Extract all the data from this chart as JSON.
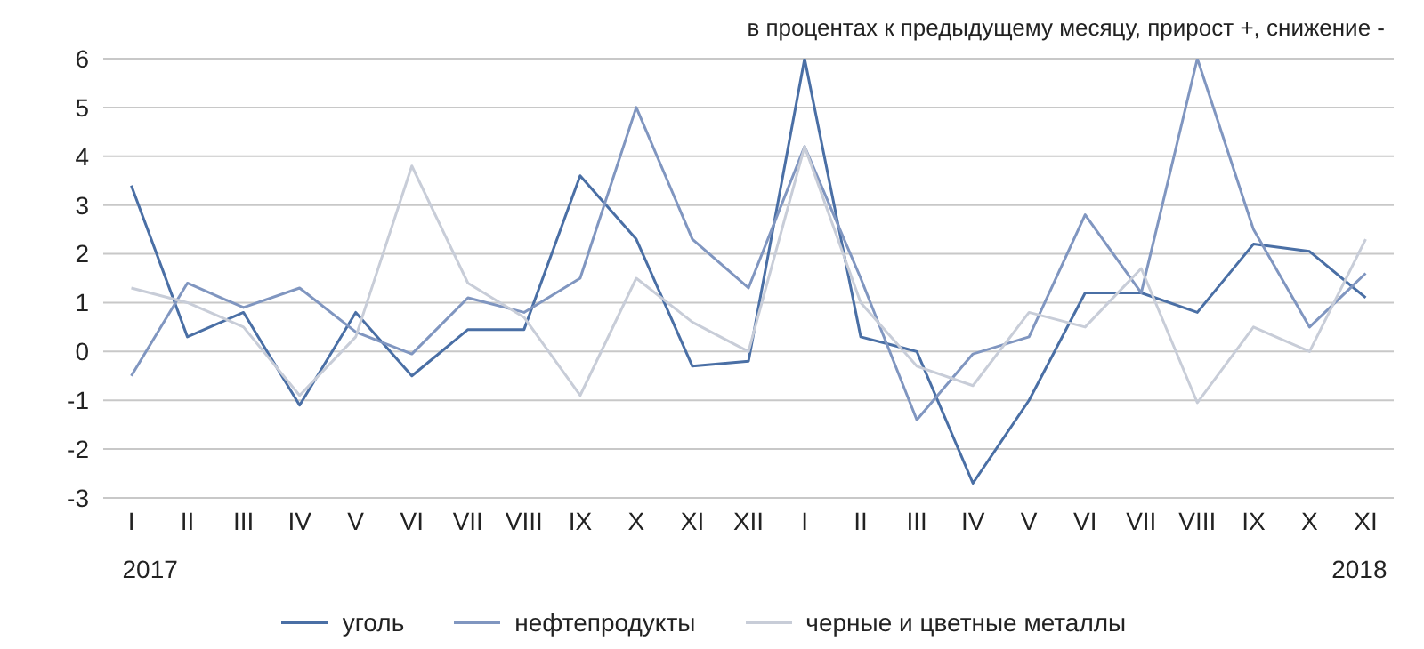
{
  "chart_data": {
    "type": "line",
    "subtitle": "в процентах к предыдущему месяцу, прирост +, снижение -",
    "categories": [
      "I",
      "II",
      "III",
      "IV",
      "V",
      "VI",
      "VII",
      "VIII",
      "IX",
      "X",
      "XI",
      "XII",
      "I",
      "II",
      "III",
      "IV",
      "V",
      "VI",
      "VII",
      "VIII",
      "IX",
      "X",
      "XI"
    ],
    "series": [
      {
        "name": "уголь",
        "color": "#4a6fa5",
        "values": [
          3.4,
          0.3,
          0.8,
          -1.1,
          0.8,
          -0.5,
          0.45,
          0.45,
          3.6,
          2.3,
          -0.3,
          -0.2,
          6.0,
          0.3,
          0.0,
          -2.7,
          -1.0,
          1.2,
          1.2,
          0.8,
          2.2,
          2.05,
          1.1
        ]
      },
      {
        "name": "нефтепродукты",
        "color": "#8096c0",
        "values": [
          -0.5,
          1.4,
          0.9,
          1.3,
          0.4,
          -0.05,
          1.1,
          0.8,
          1.5,
          5.0,
          2.3,
          1.3,
          4.2,
          1.5,
          -1.4,
          -0.05,
          0.3,
          2.8,
          1.2,
          6.0,
          2.5,
          0.5,
          1.6
        ]
      },
      {
        "name": "черные и цветные металлы",
        "color": "#c8cdd8",
        "values": [
          1.3,
          1.0,
          0.5,
          -0.9,
          0.3,
          3.8,
          1.4,
          0.7,
          -0.9,
          1.5,
          0.6,
          0.0,
          4.2,
          1.0,
          -0.3,
          -0.7,
          0.8,
          0.5,
          1.7,
          -1.05,
          0.5,
          0.0,
          2.3
        ]
      }
    ],
    "annotations": [
      "2017",
      "2018"
    ],
    "ylim": [
      -3,
      6
    ],
    "yticks": [
      -3,
      -2,
      -1,
      0,
      1,
      2,
      3,
      4,
      5,
      6
    ],
    "grid": "y",
    "legend": "bottom",
    "marker": "none",
    "line_style": "solid"
  }
}
